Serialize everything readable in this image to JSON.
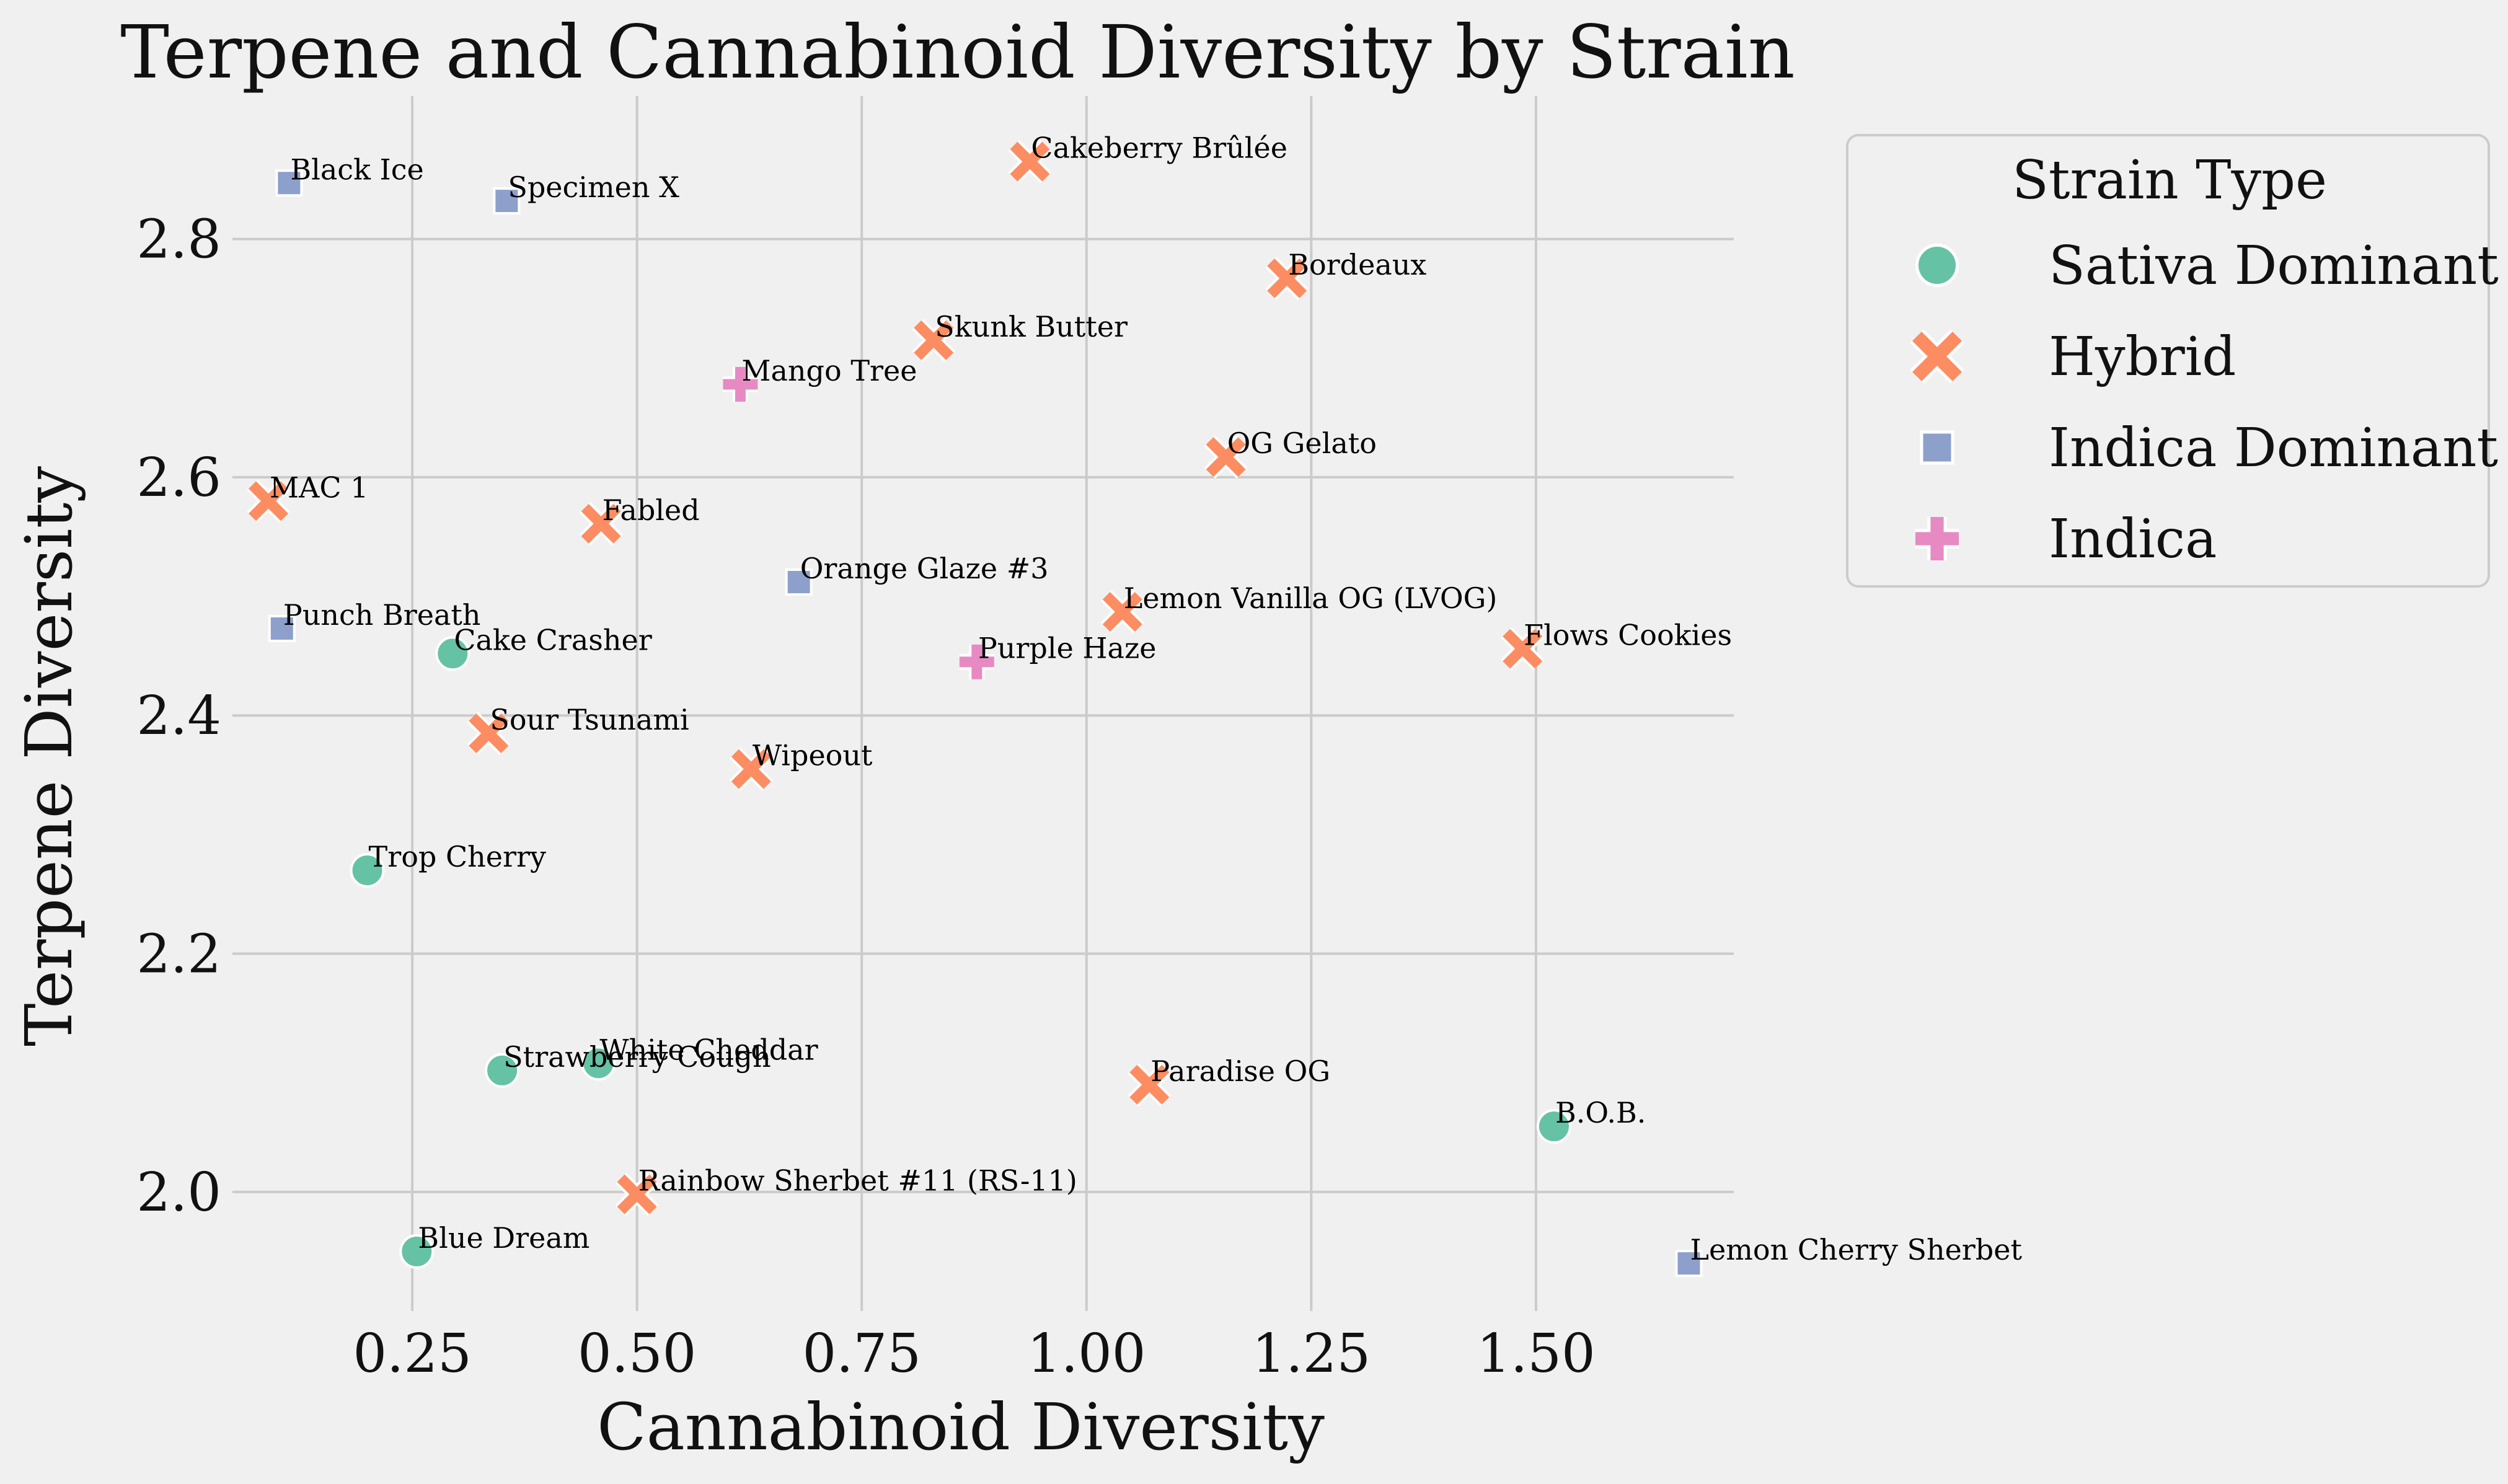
{
  "chart_data": {
    "type": "scatter",
    "title": "Terpene and Cannabinoid Diversity by Strain",
    "xlabel": "Cannabinoid Diversity",
    "ylabel": "Terpene Diversity",
    "xlim": [
      0.05,
      1.72
    ],
    "ylim": [
      1.9,
      2.92
    ],
    "xticks": [
      "0.25",
      "0.50",
      "0.75",
      "1.00",
      "1.25",
      "1.50"
    ],
    "yticks": [
      "2.0",
      "2.2",
      "2.4",
      "2.6",
      "2.8"
    ],
    "grid": true,
    "legend": {
      "title": "Strain Type",
      "placement": "outside right"
    },
    "series": [
      {
        "name": "Sativa Dominant",
        "color": "#66c2a5",
        "marker": "circle",
        "points": [
          {
            "label": "Cake Crasher",
            "x": 0.295,
            "y": 2.452
          },
          {
            "label": "Trop Cherry",
            "x": 0.2,
            "y": 2.27
          },
          {
            "label": "Strawberry Cough",
            "x": 0.35,
            "y": 2.102
          },
          {
            "label": "White Cheddar",
            "x": 0.457,
            "y": 2.108
          },
          {
            "label": "B.O.B.",
            "x": 1.52,
            "y": 2.055
          },
          {
            "label": "Blue Dream",
            "x": 0.255,
            "y": 1.95
          }
        ]
      },
      {
        "name": "Hybrid",
        "color": "#fc8d62",
        "marker": "x",
        "points": [
          {
            "label": "Cakeberry Brûlée",
            "x": 0.937,
            "y": 2.865
          },
          {
            "label": "Bordeaux",
            "x": 1.223,
            "y": 2.767
          },
          {
            "label": "Skunk Butter",
            "x": 0.83,
            "y": 2.715
          },
          {
            "label": "OG Gelato",
            "x": 1.155,
            "y": 2.617
          },
          {
            "label": "MAC 1",
            "x": 0.09,
            "y": 2.58
          },
          {
            "label": "Fabled",
            "x": 0.46,
            "y": 2.561
          },
          {
            "label": "Lemon Vanilla OG (LVOG)",
            "x": 1.04,
            "y": 2.487
          },
          {
            "label": "Flows Cookies",
            "x": 1.485,
            "y": 2.456
          },
          {
            "label": "Sour Tsunami",
            "x": 0.335,
            "y": 2.385
          },
          {
            "label": "Wipeout",
            "x": 0.627,
            "y": 2.355
          },
          {
            "label": "Paradise OG",
            "x": 1.07,
            "y": 2.09
          },
          {
            "label": "Rainbow Sherbet #11 (RS-11)",
            "x": 0.5,
            "y": 1.998
          }
        ]
      },
      {
        "name": "Indica Dominant",
        "color": "#8da0cb",
        "marker": "square",
        "points": [
          {
            "label": "Black Ice",
            "x": 0.113,
            "y": 2.847
          },
          {
            "label": "Specimen X",
            "x": 0.355,
            "y": 2.832
          },
          {
            "label": "Orange Glaze #3",
            "x": 0.68,
            "y": 2.512
          },
          {
            "label": "Punch Breath",
            "x": 0.105,
            "y": 2.473
          },
          {
            "label": "Lemon Cherry Sherbet",
            "x": 1.67,
            "y": 1.94
          }
        ]
      },
      {
        "name": "Indica",
        "color": "#e78ac3",
        "marker": "plus",
        "points": [
          {
            "label": "Mango Tree",
            "x": 0.615,
            "y": 2.678
          },
          {
            "label": "Purple Haze",
            "x": 0.878,
            "y": 2.445
          }
        ]
      }
    ]
  }
}
